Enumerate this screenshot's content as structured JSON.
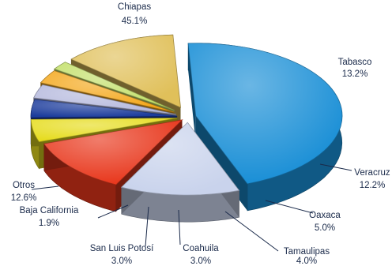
{
  "chart_data": {
    "type": "pie",
    "title": "",
    "slices": [
      {
        "name": "Chiapas",
        "value": 45.1,
        "label": "45.1%",
        "color": "#1a8fd6"
      },
      {
        "name": "Tabasco",
        "value": 13.2,
        "label": "13.2%",
        "color": "#c9d3ec"
      },
      {
        "name": "Veracruz",
        "value": 12.2,
        "label": "12.2%",
        "color": "#e8371c"
      },
      {
        "name": "Oaxaca",
        "value": 5.0,
        "label": "5.0%",
        "color": "#e6dc1e"
      },
      {
        "name": "Tamaulipas",
        "value": 4.0,
        "label": "4.0%",
        "color": "#1c3c9c"
      },
      {
        "name": "Coahuila",
        "value": 3.0,
        "label": "3.0%",
        "color": "#b5b9dd"
      },
      {
        "name": "San Luis Potosí",
        "value": 3.0,
        "label": "3.0%",
        "color": "#f4a81c"
      },
      {
        "name": "Baja California",
        "value": 1.9,
        "label": "1.9%",
        "color": "#c3e06a"
      },
      {
        "name": "Otros",
        "value": 12.6,
        "label": "12.6%",
        "color": "#e0c05a"
      }
    ],
    "legend": "none"
  }
}
